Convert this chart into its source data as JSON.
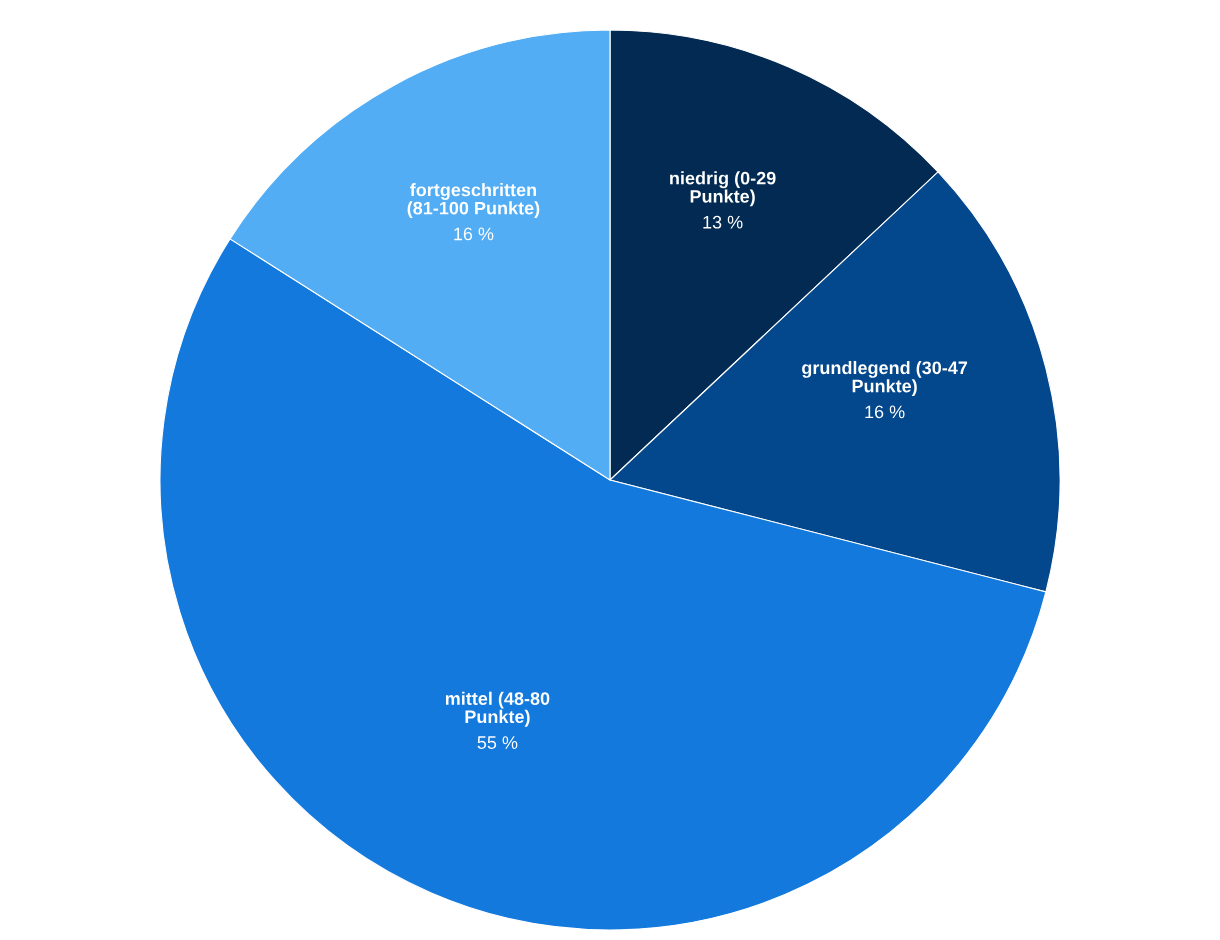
{
  "chart_data": {
    "type": "pie",
    "categories": [
      "niedrig (0-29 Punkte)",
      "grundlegend (30-47 Punkte)",
      "mittel (48-80 Punkte)",
      "fortgeschritten (81-100 Punkte)"
    ],
    "values": [
      13,
      16,
      55,
      16
    ],
    "value_labels": [
      "13 %",
      "16 %",
      "55 %",
      "16 %"
    ],
    "colors": [
      "#022a52",
      "#03478c",
      "#1479dd",
      "#52adf4"
    ]
  }
}
